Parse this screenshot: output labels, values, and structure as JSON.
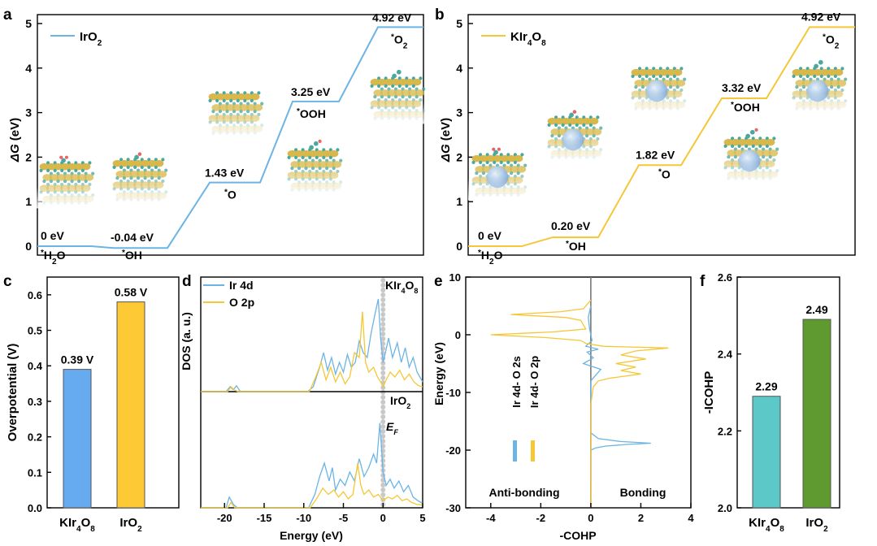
{
  "colors": {
    "iro2": "#6cb4e4",
    "kir4o8": "#f5c736",
    "bar_blue": "#66aaf0",
    "bar_yellow": "#fdc935",
    "bar_teal": "#5cc8c8",
    "bar_green": "#5e9a30",
    "crystal_ir": "#d8b84a",
    "crystal_o": "#4aa8a0",
    "crystal_k": "#a9c8ea",
    "crystal_h": "#e86464",
    "fermi": "#c8c8c8"
  },
  "chart_data": [
    {
      "panel": "a",
      "type": "line",
      "legend": "IrO2",
      "ylabel": "ΔG (eV)",
      "ylim": [
        -0.2,
        5.2
      ],
      "yticks": [
        0,
        1,
        2,
        3,
        4,
        5
      ],
      "steps": [
        {
          "label": "*H2O",
          "value": 0,
          "value_text": "0 eV"
        },
        {
          "label": "*OH",
          "value": -0.04,
          "value_text": "-0.04 eV"
        },
        {
          "label": "*O",
          "value": 1.43,
          "value_text": "1.43 eV"
        },
        {
          "label": "*OOH",
          "value": 3.25,
          "value_text": "3.25 eV"
        },
        {
          "label": "*O2",
          "value": 4.92,
          "value_text": "4.92 eV"
        }
      ]
    },
    {
      "panel": "b",
      "type": "line",
      "legend": "KIr4O8",
      "ylabel": "ΔG (eV)",
      "ylim": [
        -0.2,
        5.2
      ],
      "yticks": [
        0,
        1,
        2,
        3,
        4,
        5
      ],
      "steps": [
        {
          "label": "*H2O",
          "value": 0,
          "value_text": "0 eV"
        },
        {
          "label": "*OH",
          "value": 0.2,
          "value_text": "0.20 eV"
        },
        {
          "label": "*O",
          "value": 1.82,
          "value_text": "1.82 eV"
        },
        {
          "label": "*OOH",
          "value": 3.32,
          "value_text": "3.32 eV"
        },
        {
          "label": "*O2",
          "value": 4.92,
          "value_text": "4.92 eV"
        }
      ]
    },
    {
      "panel": "c",
      "type": "bar",
      "ylabel": "Overpotential (V)",
      "ylim": [
        0,
        0.65
      ],
      "yticks": [
        0.0,
        0.1,
        0.2,
        0.3,
        0.4,
        0.5,
        0.6
      ],
      "categories": [
        "KIr4O8",
        "IrO2"
      ],
      "values": [
        0.39,
        0.58
      ],
      "value_labels": [
        "0.39 V",
        "0.58 V"
      ]
    },
    {
      "panel": "d",
      "type": "line",
      "xlabel": "Energy (eV)",
      "ylabel": "DOS (a. u.)",
      "xlim": [
        -23,
        5
      ],
      "xticks": [
        -20,
        -15,
        -10,
        -5,
        0,
        5
      ],
      "legend": [
        "Ir 4d",
        "O 2p"
      ],
      "annotations": [
        "KIr4O8",
        "IrO2",
        "EF"
      ],
      "series": [
        {
          "name": "Ir 4d",
          "subpanel": "KIr4O8",
          "x": [
            -23,
            -19.8,
            -19.3,
            -18.9,
            -18.5,
            -18.0,
            -9.5,
            -8.8,
            -8.0,
            -7.5,
            -7.0,
            -6.5,
            -6.0,
            -5.5,
            -5.0,
            -4.5,
            -4.0,
            -3.5,
            -3.0,
            -2.5,
            -2.0,
            -1.5,
            -1.0,
            -0.6,
            -0.3,
            0.0,
            0.3,
            0.7,
            1.2,
            1.8,
            2.3,
            2.8,
            3.3,
            3.8,
            4.3,
            5.0
          ],
          "y": [
            0,
            0,
            0.05,
            0.02,
            0.06,
            0,
            0,
            0.05,
            0.25,
            0.4,
            0.22,
            0.35,
            0.18,
            0.3,
            0.2,
            0.38,
            0.25,
            0.3,
            0.52,
            0.4,
            0.35,
            0.6,
            0.8,
            0.95,
            0.55,
            0.3,
            0.4,
            0.55,
            0.35,
            0.5,
            0.3,
            0.45,
            0.25,
            0.35,
            0.2,
            0.1
          ]
        },
        {
          "name": "O 2p",
          "subpanel": "KIr4O8",
          "x": [
            -23,
            -19.6,
            -19.2,
            -18.8,
            -18.3,
            -9.3,
            -8.5,
            -7.8,
            -7.2,
            -6.6,
            -6.0,
            -5.4,
            -4.8,
            -4.2,
            -3.6,
            -3.0,
            -2.6,
            -2.2,
            -1.8,
            -1.2,
            -0.7,
            -0.3,
            0.0,
            0.4,
            0.9,
            1.5,
            2.1,
            2.7,
            3.3,
            3.9,
            4.5,
            5.0
          ],
          "y": [
            0,
            0,
            0.05,
            0.02,
            0,
            0,
            0.15,
            0.3,
            0.12,
            0.25,
            0.1,
            0.2,
            0.08,
            0.15,
            0.4,
            0.35,
            0.82,
            0.3,
            0.2,
            0.25,
            0.15,
            0.1,
            0.05,
            0.12,
            0.2,
            0.15,
            0.22,
            0.12,
            0.18,
            0.1,
            0.06,
            0.05
          ]
        },
        {
          "name": "Ir 4d",
          "subpanel": "IrO2",
          "x": [
            -23,
            -19.8,
            -19.4,
            -18.9,
            -18.4,
            -9.4,
            -8.6,
            -8.0,
            -7.4,
            -6.8,
            -6.4,
            -6.0,
            -5.4,
            -4.8,
            -4.2,
            -3.6,
            -3.0,
            -2.4,
            -1.8,
            -1.2,
            -0.8,
            -0.4,
            0.0,
            0.4,
            0.9,
            1.4,
            2.0,
            2.6,
            3.2,
            3.8,
            4.4,
            5.0
          ],
          "y": [
            0,
            0,
            0.12,
            0.04,
            0,
            0,
            0.15,
            0.35,
            0.5,
            0.3,
            0.45,
            0.2,
            0.32,
            0.25,
            0.4,
            0.3,
            0.55,
            0.35,
            0.45,
            0.6,
            0.5,
            0.95,
            0.4,
            0.25,
            0.32,
            0.22,
            0.3,
            0.18,
            0.25,
            0.12,
            0.08,
            0.05
          ]
        },
        {
          "name": "O 2p",
          "subpanel": "IrO2",
          "x": [
            -23,
            -19.6,
            -19.2,
            -18.7,
            -9.2,
            -8.4,
            -7.6,
            -6.9,
            -6.2,
            -5.6,
            -5.0,
            -4.4,
            -3.8,
            -3.2,
            -2.8,
            -2.4,
            -1.8,
            -1.2,
            -0.6,
            0.0,
            0.6,
            1.2,
            1.8,
            2.4,
            3.0,
            3.6,
            4.2,
            5.0
          ],
          "y": [
            0,
            0,
            0.06,
            0,
            0,
            0.1,
            0.22,
            0.15,
            0.2,
            0.12,
            0.18,
            0.1,
            0.15,
            0.5,
            0.25,
            0.15,
            0.2,
            0.12,
            0.15,
            0.08,
            0.12,
            0.1,
            0.14,
            0.08,
            0.1,
            0.06,
            0.04,
            0.03
          ]
        }
      ]
    },
    {
      "panel": "e",
      "type": "line",
      "xlabel": "-COHP",
      "ylabel": "Energy (eV)",
      "xlim": [
        -5,
        4
      ],
      "xticks": [
        -4,
        -2,
        0,
        2,
        4
      ],
      "ylim": [
        -30,
        10
      ],
      "yticks": [
        -30,
        -20,
        -10,
        0,
        10
      ],
      "legend": [
        "Ir 4d- O 2s",
        "Ir 4d- O 2p"
      ],
      "annotations": [
        "Anti-bonding",
        "Bonding"
      ],
      "series": [
        {
          "name": "Ir 4d- O 2s",
          "e": [
            5,
            3,
            1,
            -1,
            -2,
            -2.5,
            -3,
            -4,
            -5,
            -6,
            -7,
            -8,
            -10,
            -17,
            -18,
            -18.5,
            -18.8,
            -19,
            -19.3,
            -19.6,
            -20,
            -21,
            -25
          ],
          "v": [
            0,
            -0.1,
            -0.05,
            0.05,
            -0.2,
            0.3,
            -0.15,
            0.1,
            -0.3,
            0.4,
            0.2,
            0,
            0,
            0,
            0.3,
            1.2,
            2.4,
            1.5,
            0.6,
            0.2,
            0,
            0,
            0
          ]
        },
        {
          "name": "Ir 4d- O 2p",
          "e": [
            6,
            4.5,
            4,
            3.5,
            3,
            2.5,
            1,
            0.5,
            0,
            -0.5,
            -1,
            -1.5,
            -2,
            -2.3,
            -2.8,
            -3.5,
            -4.2,
            -5,
            -5.6,
            -6.2,
            -6.8,
            -7.5,
            -8,
            -9,
            -12,
            -30
          ],
          "v": [
            0,
            -0.3,
            -1.2,
            -3.2,
            -1.0,
            -0.4,
            -0.2,
            -1.5,
            -4.0,
            -1.8,
            -0.4,
            -0.2,
            0.5,
            3.1,
            1.8,
            1.2,
            2.2,
            1.0,
            1.8,
            1.2,
            2.0,
            0.8,
            0.3,
            0.1,
            0,
            0
          ]
        }
      ]
    },
    {
      "panel": "f",
      "type": "bar",
      "ylabel": "-ICOHP",
      "ylim": [
        2.0,
        2.6
      ],
      "yticks": [
        2.0,
        2.2,
        2.4,
        2.6
      ],
      "categories": [
        "KIr4O8",
        "IrO2"
      ],
      "values": [
        2.29,
        2.49
      ],
      "value_labels": [
        "2.29",
        "2.49"
      ]
    }
  ]
}
